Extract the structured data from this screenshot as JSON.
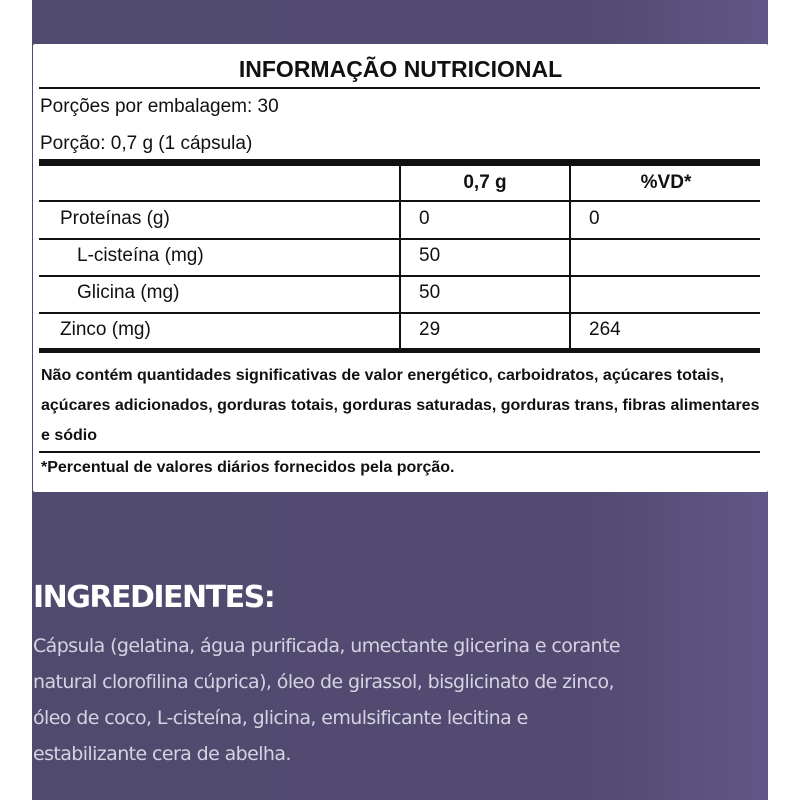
{
  "label": {
    "title": "INFORMAÇÃO NUTRICIONAL",
    "servings_per_pack": "Porções por embalagem: 30",
    "serving_size": "Porção: 0,7 g (1 cápsula)",
    "columns": [
      "",
      "0,7 g",
      "%VD*"
    ],
    "rows": [
      {
        "name": "Proteínas (g)",
        "amount": "0",
        "dv": "0",
        "indent": false
      },
      {
        "name": "L-cisteína (mg)",
        "amount": "50",
        "dv": "",
        "indent": true
      },
      {
        "name": "Glicina (mg)",
        "amount": "50",
        "dv": "",
        "indent": true
      },
      {
        "name": "Zinco (mg)",
        "amount": "29",
        "dv": "264",
        "indent": false
      }
    ],
    "note": "Não contém quantidades significativas de valor energético, carboidratos, açúcares totais, açúcares adicionados, gorduras totais, gorduras saturadas, gorduras trans, fibras alimentares e sódio",
    "footnote": "*Percentual de valores diários fornecidos pela porção."
  },
  "ingredients": {
    "heading": "INGREDIENTES:",
    "text": "Cápsula (gelatina, água purificada, umectante glicerina e corante natural clorofilina cúprica), óleo de girassol, bisglicinato de zinco, óleo de coco, L-cisteína, glicina, emulsificante lecitina e estabilizante cera de abelha."
  },
  "colors": {
    "background": "#524a70",
    "card": "#ffffff",
    "heading": "#ffffff",
    "ingredients_text": "#d6d2e2"
  }
}
